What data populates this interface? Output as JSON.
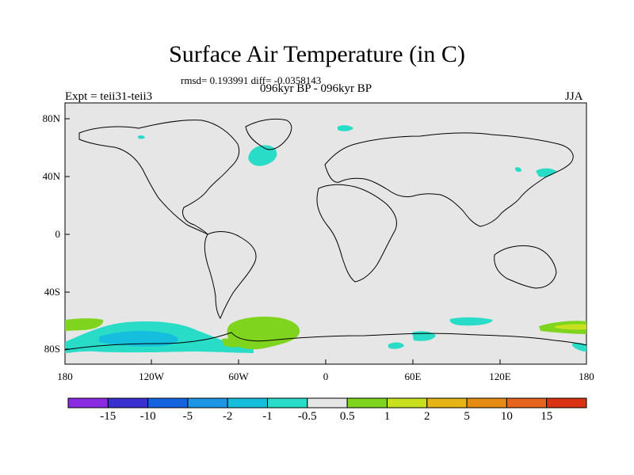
{
  "title": "Surface Air Temperature (in C)",
  "stats_line": "rmsd= 0.193991 diff= -0.0358143",
  "period_line": "096kyr BP - 096kyr BP",
  "experiment": "Expt = teii31-teii3",
  "season": "JJA",
  "lat_labels": [
    "80N",
    "40N",
    "0",
    "40S",
    "80S"
  ],
  "lon_labels": [
    "180",
    "120W",
    "60W",
    "0",
    "60E",
    "120E",
    "180"
  ],
  "colorbar": {
    "colors": [
      "#8a2be2",
      "#3a2fd0",
      "#1464e0",
      "#1e96e6",
      "#14bedc",
      "#28dcc8",
      "#e6e6e6",
      "#7fd41e",
      "#c8e01e",
      "#e6b414",
      "#e68c14",
      "#e6641e",
      "#dc3214"
    ],
    "labels": [
      "-15",
      "-10",
      "-5",
      "-2",
      "-1",
      "-0.5",
      "0.5",
      "1",
      "2",
      "5",
      "10",
      "15"
    ]
  },
  "colors": {
    "background_field": "#e6e6e6",
    "coast": "#000000"
  }
}
